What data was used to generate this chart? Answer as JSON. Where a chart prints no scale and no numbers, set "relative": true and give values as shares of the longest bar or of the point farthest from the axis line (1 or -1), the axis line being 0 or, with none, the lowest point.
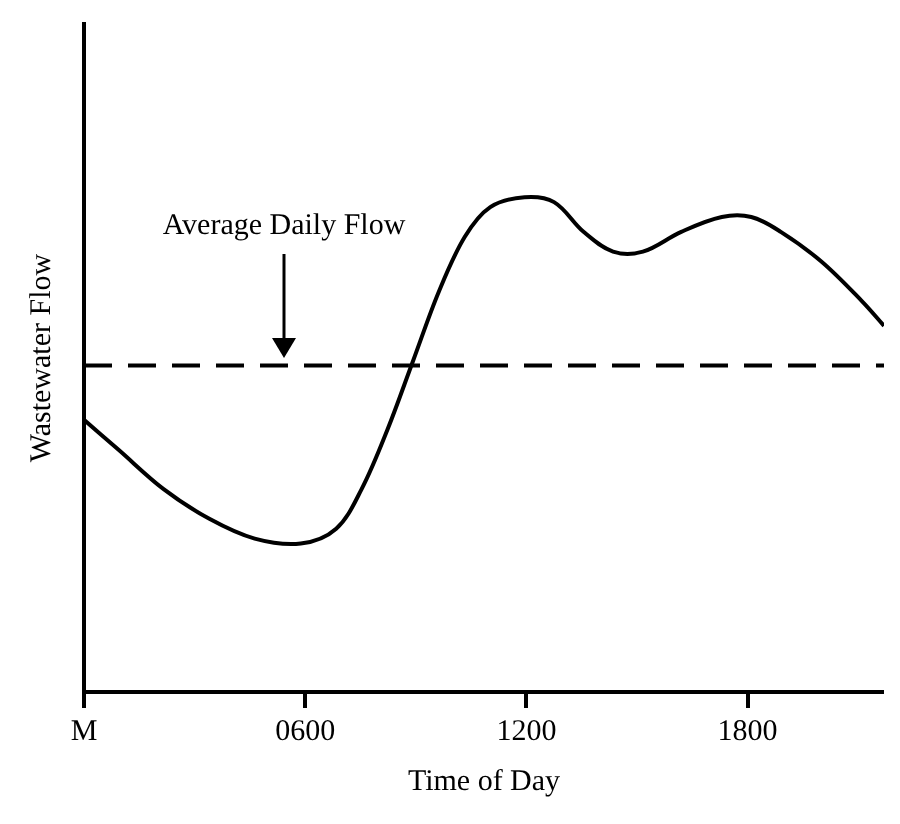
{
  "chart_data": {
    "type": "line",
    "relative": true,
    "xlabel": "Time of Day",
    "ylabel": "Wastewater Flow",
    "x": [
      0,
      93,
      216,
      340,
      463,
      588,
      684,
      753,
      823,
      893,
      963,
      1033,
      1102,
      1195,
      1275,
      1355,
      1435,
      1516,
      1620,
      1730,
      1810,
      1890,
      2000,
      2110,
      2170
    ],
    "series": [
      {
        "color": "#000000",
        "values": [
          0.55,
          0.49,
          0.41,
          0.35,
          0.31,
          0.3,
          0.33,
          0.41,
          0.53,
          0.67,
          0.81,
          0.92,
          0.98,
          1.0,
          0.99,
          0.93,
          0.89,
          0.89,
          0.93,
          0.96,
          0.96,
          0.93,
          0.87,
          0.79,
          0.74
        ]
      }
    ],
    "xlim": [
      0,
      2170
    ],
    "xticks": [
      {
        "value": 0,
        "label": "M"
      },
      {
        "value": 600,
        "label": "0600"
      },
      {
        "value": 1200,
        "label": "1200"
      },
      {
        "value": 1800,
        "label": "1800"
      }
    ],
    "ref_lines": [
      {
        "axis": "y",
        "value": 0.66,
        "label": "Average Daily Flow",
        "color": "#000000",
        "line_style": "dashed"
      }
    ],
    "grid": false,
    "legend": false,
    "marker": "none",
    "line_style": "solid"
  }
}
